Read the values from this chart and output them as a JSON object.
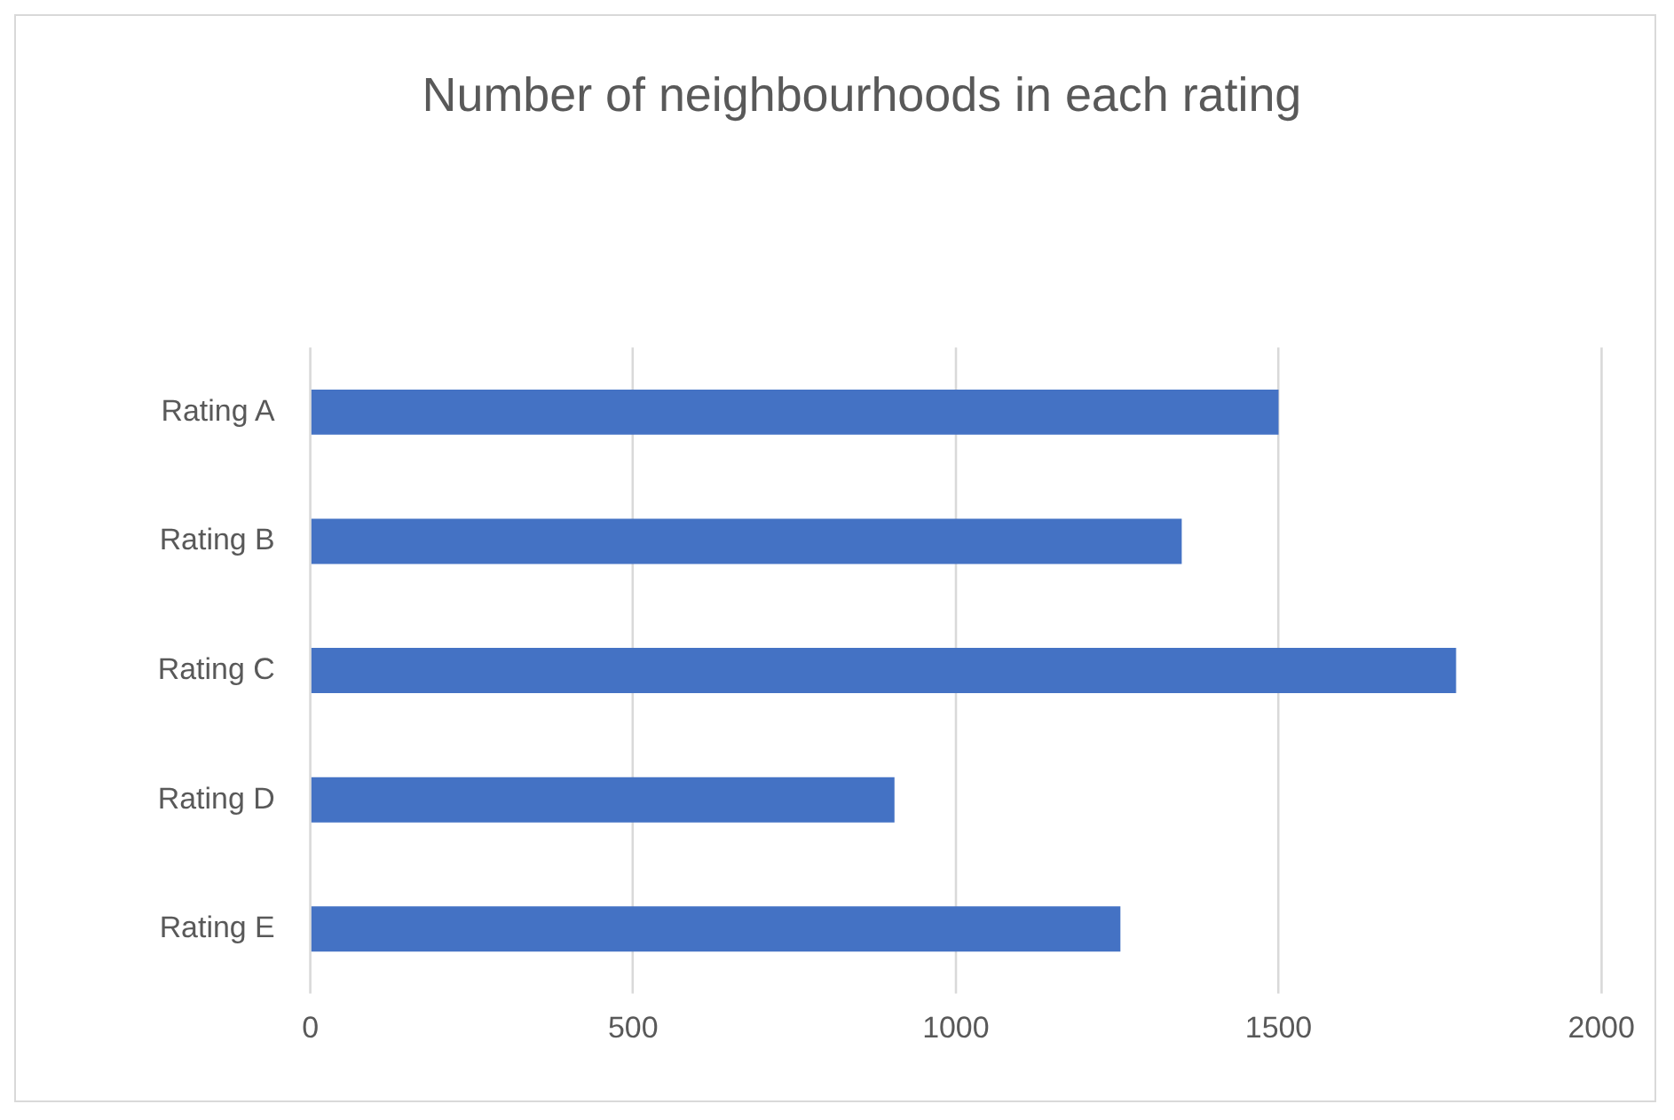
{
  "chart_data": {
    "type": "bar",
    "orientation": "horizontal",
    "title": "Number of neighbourhoods in each rating",
    "categories": [
      "Rating A",
      "Rating B",
      "Rating C",
      "Rating D",
      "Rating E"
    ],
    "values": [
      1500,
      1350,
      1775,
      905,
      1255
    ],
    "color": "#4472c4",
    "xlim": [
      0,
      2000
    ],
    "xticks": [
      0,
      500,
      1000,
      1500,
      2000
    ],
    "grid": "x",
    "legend": false
  }
}
